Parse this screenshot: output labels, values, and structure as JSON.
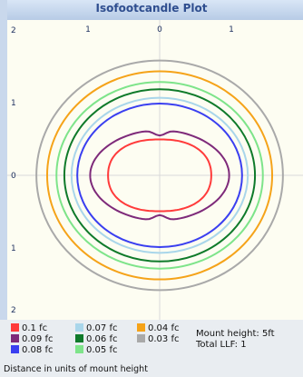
{
  "chart_data": {
    "type": "line",
    "title": "Isofootcandle Plot",
    "x_ticks": [
      "1",
      "0",
      "1"
    ],
    "y_ticks": [
      "2",
      "1",
      "0",
      "1",
      "2"
    ],
    "xlim": [
      -2,
      2
    ],
    "ylim": [
      -2,
      2
    ],
    "grid": true,
    "legend_position": "bottom",
    "series": [
      {
        "name": "0.1 fc",
        "color": "#ff3b3b",
        "half_width": 0.72,
        "half_height": 0.5,
        "shape": "oval"
      },
      {
        "name": "0.09 fc",
        "color": "#7e2a7a",
        "half_width": 0.97,
        "half_height": 0.63,
        "shape": "waisted"
      },
      {
        "name": "0.08 fc",
        "color": "#3a3ff0",
        "half_width": 1.15,
        "half_height": 1.0,
        "shape": "circle"
      },
      {
        "name": "0.07 fc",
        "color": "#a9d6ea",
        "half_width": 1.23,
        "half_height": 1.08,
        "shape": "circle"
      },
      {
        "name": "0.06 fc",
        "color": "#0f7a2a",
        "half_width": 1.33,
        "half_height": 1.2,
        "shape": "circle"
      },
      {
        "name": "0.05 fc",
        "color": "#7ee48a",
        "half_width": 1.44,
        "half_height": 1.3,
        "shape": "circle"
      },
      {
        "name": "0.04 fc",
        "color": "#f5a319",
        "half_width": 1.57,
        "half_height": 1.45,
        "shape": "circle"
      },
      {
        "name": "0.03 fc",
        "color": "#a9a9a9",
        "half_width": 1.72,
        "half_height": 1.6,
        "shape": "circle"
      }
    ]
  },
  "legend_entries": [
    {
      "label": "0.1 fc",
      "color": "#ff3b3b"
    },
    {
      "label": "0.07 fc",
      "color": "#a9d6ea"
    },
    {
      "label": "0.04 fc",
      "color": "#f5a319"
    },
    {
      "label": "0.09 fc",
      "color": "#7e2a7a"
    },
    {
      "label": "0.06 fc",
      "color": "#0f7a2a"
    },
    {
      "label": "0.03 fc",
      "color": "#a9a9a9"
    },
    {
      "label": "0.08 fc",
      "color": "#3a3ff0"
    },
    {
      "label": "0.05 fc",
      "color": "#7ee48a"
    }
  ],
  "info": {
    "mount_height": "Mount height: 5ft",
    "total_llf": "Total LLF: 1"
  },
  "footnote": "Distance in units of mount height"
}
